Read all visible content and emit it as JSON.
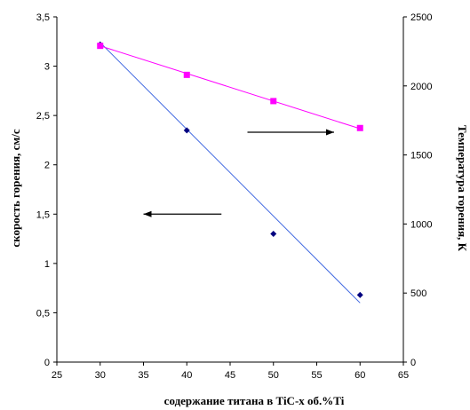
{
  "chart_data": {
    "type": "scatter",
    "xlabel": "содержание титана в TiC-x об.%Ti",
    "ylabel_left": "скорость горения, см/с",
    "ylabel_right": "Температура горения, К",
    "xlim": [
      25,
      65
    ],
    "ylim_left": [
      0,
      3.5
    ],
    "ylim_right": [
      0,
      2500
    ],
    "x_ticks": [
      "25",
      "30",
      "35",
      "40",
      "45",
      "50",
      "55",
      "60",
      "65"
    ],
    "y_ticks_left": [
      "0",
      "0,5",
      "1",
      "1,5",
      "2",
      "2,5",
      "3",
      "3,5"
    ],
    "y_ticks_right": [
      "0",
      "500",
      "1000",
      "1500",
      "2000",
      "2500"
    ],
    "grid": false,
    "series": [
      {
        "axis": "left",
        "color": "#000080",
        "trendline_color": "#4169e1",
        "marker": "diamond",
        "x": [
          30,
          40,
          50,
          60
        ],
        "y": [
          3.22,
          2.35,
          1.3,
          0.68
        ],
        "trendline": {
          "x": [
            30,
            60
          ],
          "y": [
            3.24,
            0.6
          ]
        }
      },
      {
        "axis": "right",
        "color": "#ff00ff",
        "trendline_color": "#ff00ff",
        "marker": "square",
        "x": [
          30,
          40,
          50,
          60
        ],
        "y": [
          2290,
          2080,
          1890,
          1695
        ],
        "trendline": {
          "x": [
            30,
            60
          ],
          "y": [
            2290,
            1690
          ]
        }
      }
    ],
    "annotations": [
      {
        "type": "arrow",
        "direction": "right",
        "x": [
          47,
          57
        ],
        "y_left": 2.33
      },
      {
        "type": "arrow",
        "direction": "left",
        "x": [
          35,
          44
        ],
        "y_left": 1.5
      }
    ]
  }
}
